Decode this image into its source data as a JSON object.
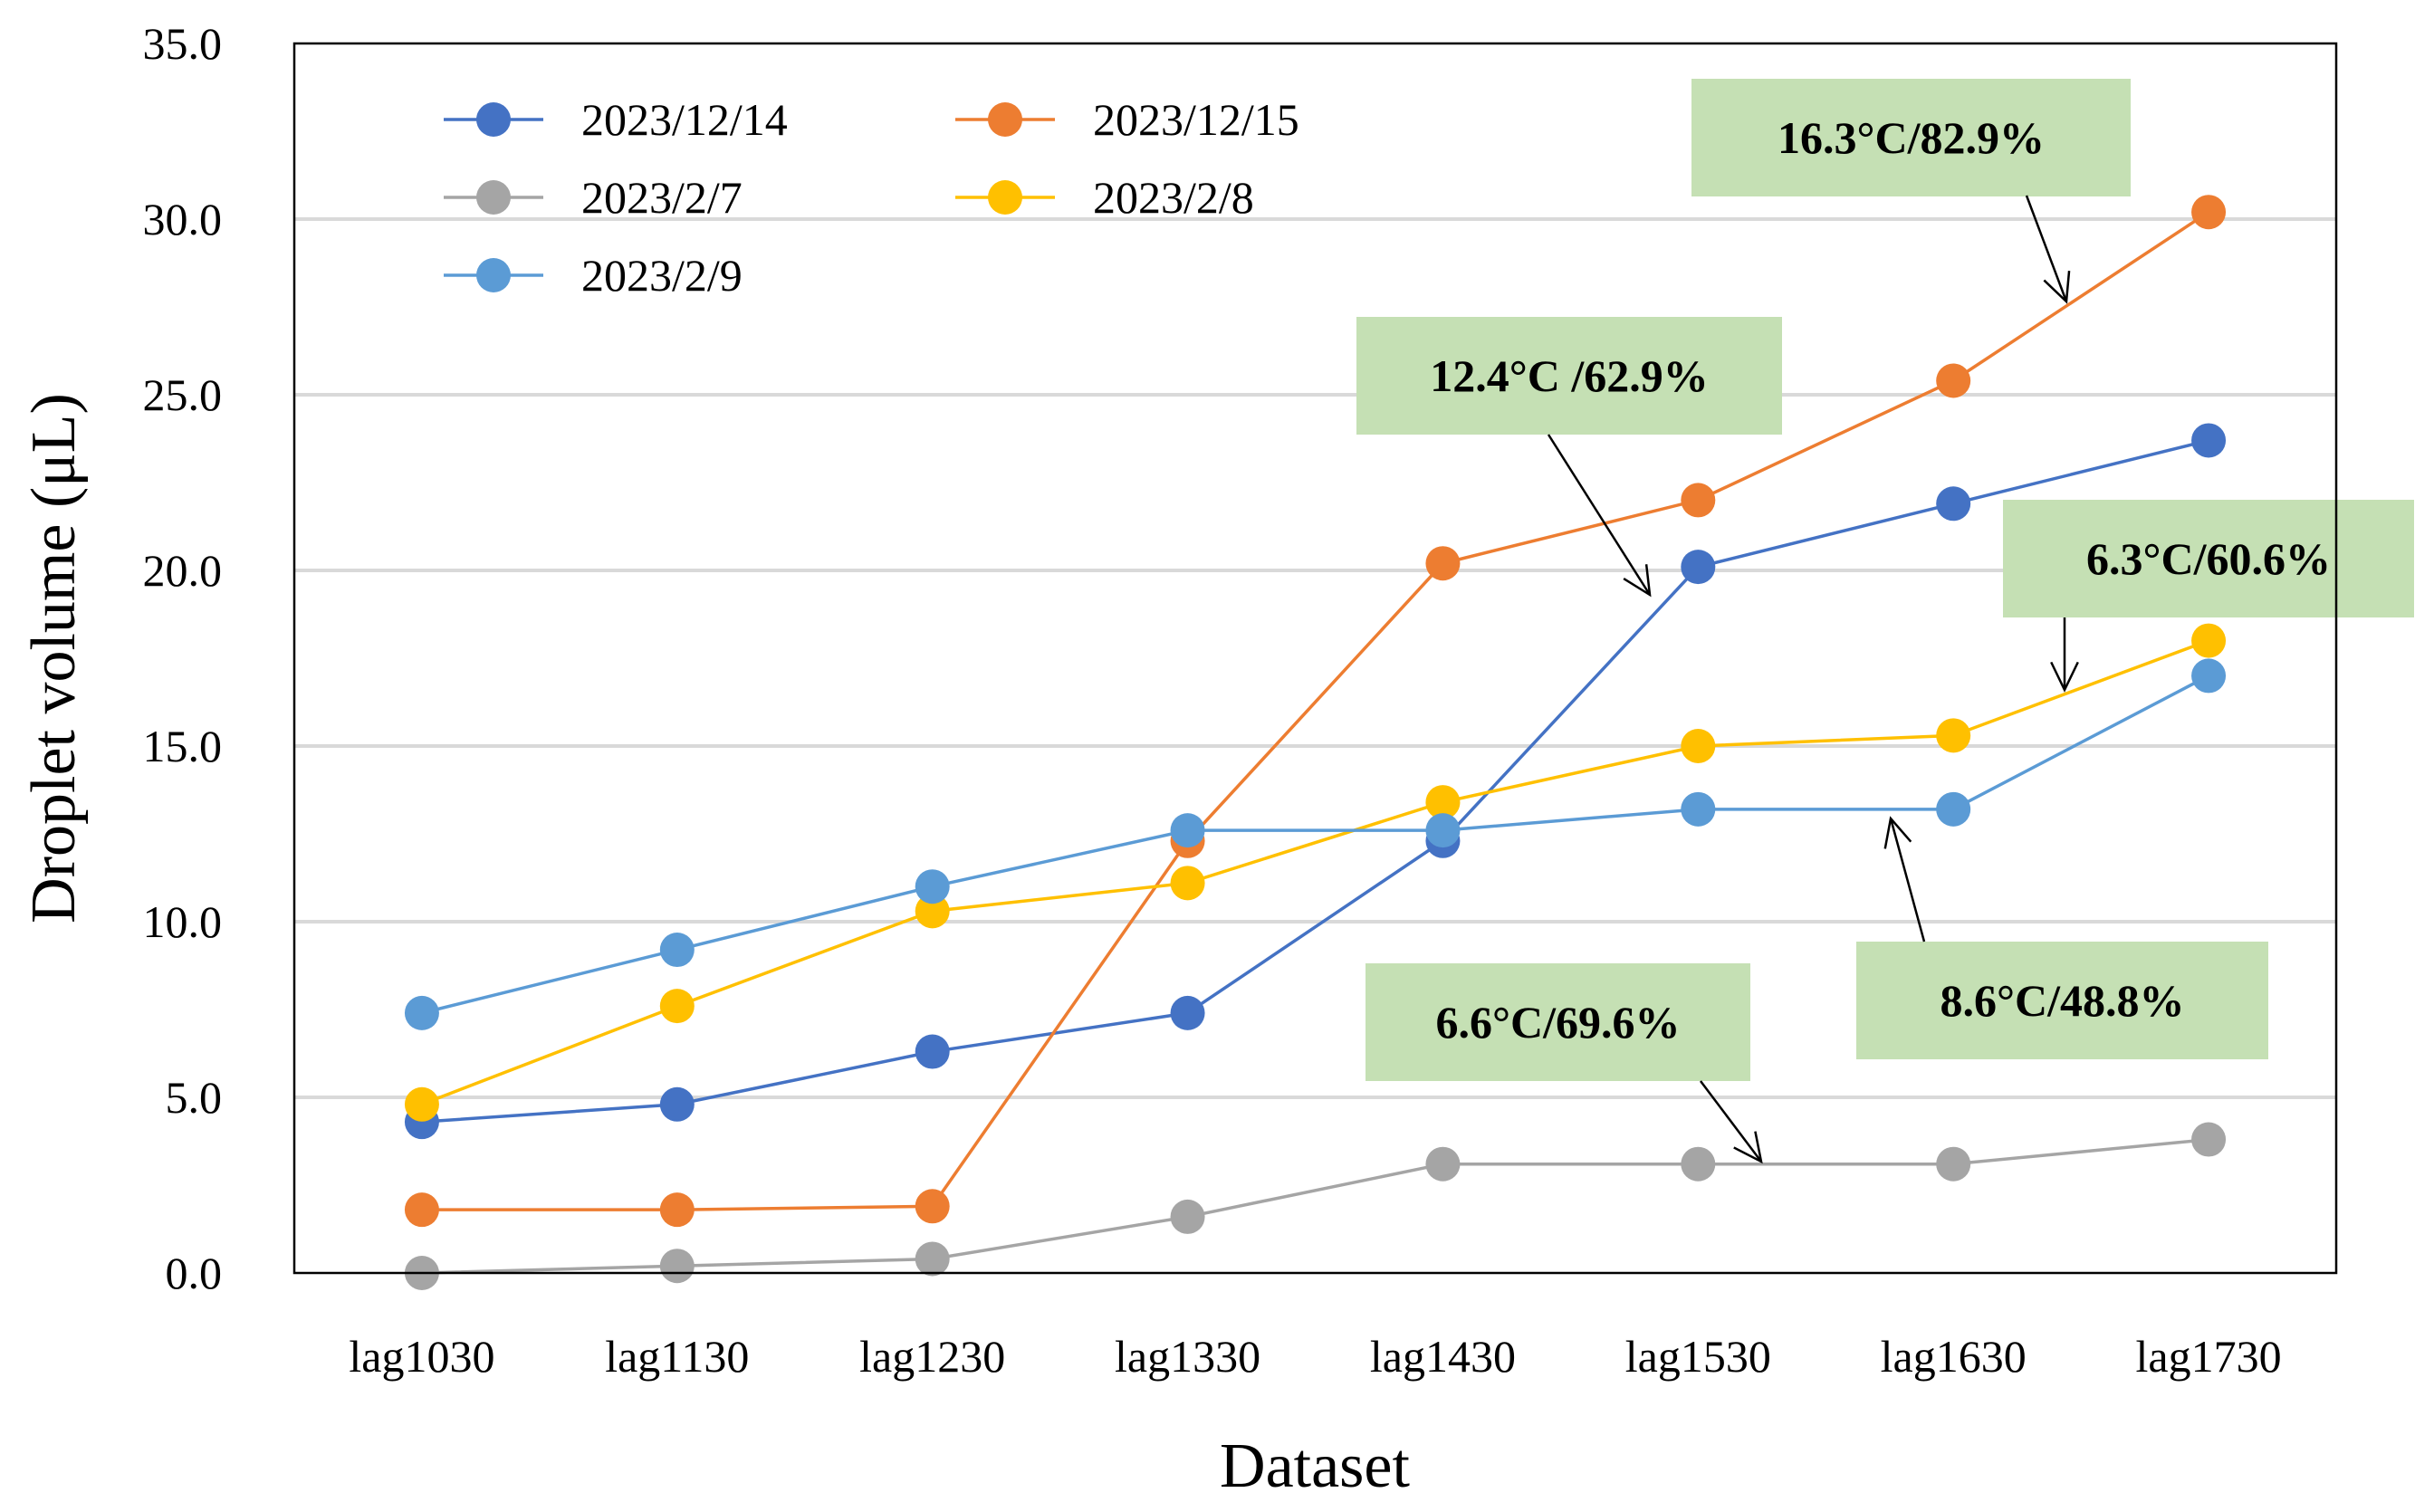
{
  "chart_data": {
    "type": "line",
    "title": "",
    "xlabel": "Dataset",
    "ylabel": "Droplet volume (μL)",
    "ylim": [
      0,
      35
    ],
    "y_ticks": [
      "0.0",
      "5.0",
      "10.0",
      "15.0",
      "20.0",
      "25.0",
      "30.0",
      "35.0"
    ],
    "grid": true,
    "legend_position": "top-left",
    "categories": [
      "lag1030",
      "lag1130",
      "lag1230",
      "lag1330",
      "lag1430",
      "lag1530",
      "lag1630",
      "lag1730"
    ],
    "series": [
      {
        "name": "2023/12/14",
        "color": "#4472c4",
        "values": [
          4.3,
          4.8,
          6.3,
          7.4,
          12.3,
          20.1,
          21.9,
          23.7
        ]
      },
      {
        "name": "2023/12/15",
        "color": "#ed7d31",
        "values": [
          1.8,
          1.8,
          1.9,
          12.3,
          20.2,
          22.0,
          25.4,
          30.2
        ]
      },
      {
        "name": "2023/2/7",
        "color": "#a5a5a5",
        "values": [
          0.0,
          0.2,
          0.4,
          1.6,
          3.1,
          3.1,
          3.1,
          3.8
        ]
      },
      {
        "name": "2023/2/8",
        "color": "#ffc000",
        "values": [
          4.8,
          7.6,
          10.3,
          11.1,
          13.4,
          15.0,
          15.3,
          18.0
        ]
      },
      {
        "name": "2023/2/9",
        "color": "#5b9bd5",
        "values": [
          7.4,
          9.2,
          11.0,
          12.6,
          12.6,
          13.2,
          13.2,
          17.0
        ]
      }
    ],
    "annotations": [
      {
        "text": "16.3°C/82.9%",
        "series": "2023/12/15"
      },
      {
        "text": "12.4°C /62.9%",
        "series": "2023/12/14"
      },
      {
        "text": "6.3°C/60.6%",
        "series": "2023/2/8"
      },
      {
        "text": "6.6°C/69.6%",
        "series": "2023/2/7"
      },
      {
        "text": "8.6°C/48.8%",
        "series": "2023/2/9"
      }
    ]
  }
}
